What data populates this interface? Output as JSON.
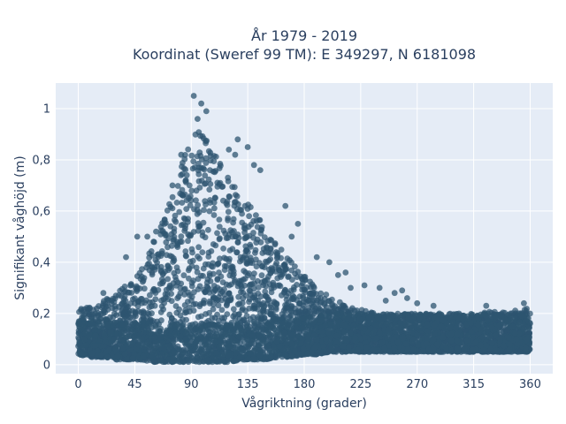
{
  "chart_data": {
    "type": "scatter",
    "title_lines": [
      "År 1979 - 2019",
      "Koordinat (Sweref 99 TM): E 349297, N 6181098"
    ],
    "xlabel": "Vågriktning (grader)",
    "ylabel": "Signifikant våghöjd (m)",
    "xlim": [
      -18,
      378
    ],
    "ylim": [
      -0.035,
      1.1
    ],
    "xticks": [
      0,
      45,
      90,
      135,
      180,
      225,
      270,
      315,
      360
    ],
    "xtick_labels": [
      "0",
      "45",
      "90",
      "135",
      "180",
      "225",
      "270",
      "315",
      "360"
    ],
    "yticks": [
      0,
      0.2,
      0.4,
      0.6,
      0.8,
      1.0
    ],
    "ytick_labels": [
      "0",
      "0,2",
      "0,4",
      "0,6",
      "0,8",
      "1"
    ],
    "grid": true,
    "legend": "none",
    "colors": {
      "marker": "#2e5570",
      "plot_background": "#e5ecf6",
      "grid": "#ffffff",
      "text": "#2a3f5f"
    },
    "envelope": {
      "direction": [
        0,
        10,
        20,
        30,
        40,
        50,
        60,
        70,
        80,
        90,
        95,
        100,
        110,
        120,
        130,
        140,
        150,
        160,
        170,
        180,
        190,
        200,
        210,
        220,
        230,
        240,
        250,
        260,
        270,
        280,
        290,
        300,
        310,
        320,
        330,
        340,
        350,
        360
      ],
      "max_height": [
        0.22,
        0.23,
        0.25,
        0.28,
        0.32,
        0.38,
        0.48,
        0.6,
        0.75,
        0.9,
        0.95,
        0.9,
        0.83,
        0.73,
        0.66,
        0.6,
        0.53,
        0.46,
        0.4,
        0.35,
        0.3,
        0.27,
        0.24,
        0.22,
        0.21,
        0.2,
        0.2,
        0.2,
        0.2,
        0.2,
        0.2,
        0.2,
        0.2,
        0.2,
        0.21,
        0.21,
        0.22,
        0.22
      ],
      "min_height": [
        0.04,
        0.03,
        0.03,
        0.02,
        0.02,
        0.02,
        0.01,
        0.01,
        0.01,
        0.01,
        0.01,
        0.01,
        0.01,
        0.01,
        0.02,
        0.02,
        0.02,
        0.03,
        0.03,
        0.04,
        0.04,
        0.05,
        0.05,
        0.05,
        0.05,
        0.05,
        0.05,
        0.05,
        0.05,
        0.05,
        0.05,
        0.05,
        0.05,
        0.05,
        0.05,
        0.05,
        0.05,
        0.05
      ]
    },
    "outliers": [
      {
        "x": 92,
        "y": 1.05
      },
      {
        "x": 98,
        "y": 1.02
      },
      {
        "x": 102,
        "y": 0.99
      },
      {
        "x": 95,
        "y": 0.96
      },
      {
        "x": 120,
        "y": 0.84
      },
      {
        "x": 127,
        "y": 0.88
      },
      {
        "x": 135,
        "y": 0.85
      },
      {
        "x": 125,
        "y": 0.82
      },
      {
        "x": 140,
        "y": 0.78
      },
      {
        "x": 145,
        "y": 0.76
      },
      {
        "x": 165,
        "y": 0.62
      },
      {
        "x": 175,
        "y": 0.55
      },
      {
        "x": 170,
        "y": 0.5
      },
      {
        "x": 190,
        "y": 0.42
      },
      {
        "x": 200,
        "y": 0.4
      },
      {
        "x": 207,
        "y": 0.35
      },
      {
        "x": 213,
        "y": 0.36
      },
      {
        "x": 217,
        "y": 0.3
      },
      {
        "x": 228,
        "y": 0.31
      },
      {
        "x": 240,
        "y": 0.3
      },
      {
        "x": 252,
        "y": 0.28
      },
      {
        "x": 258,
        "y": 0.29
      },
      {
        "x": 245,
        "y": 0.25
      },
      {
        "x": 262,
        "y": 0.26
      },
      {
        "x": 270,
        "y": 0.24
      },
      {
        "x": 283,
        "y": 0.23
      },
      {
        "x": 325,
        "y": 0.23
      },
      {
        "x": 355,
        "y": 0.24
      },
      {
        "x": 47,
        "y": 0.5
      },
      {
        "x": 55,
        "y": 0.5
      },
      {
        "x": 60,
        "y": 0.48
      },
      {
        "x": 62,
        "y": 0.52
      },
      {
        "x": 38,
        "y": 0.42
      },
      {
        "x": 20,
        "y": 0.28
      },
      {
        "x": 75,
        "y": 0.7
      },
      {
        "x": 82,
        "y": 0.82
      }
    ]
  }
}
